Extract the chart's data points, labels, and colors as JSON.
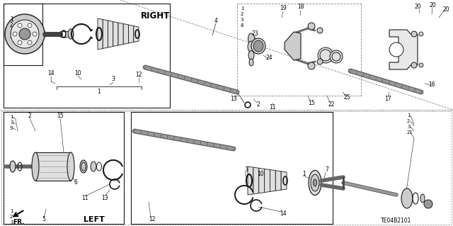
{
  "bg_color": "#ffffff",
  "diagram_id": "TE04B2101",
  "right_label": "RIGHT",
  "left_label": "LEFT",
  "fr_label": "FR.",
  "lc": "#1a1a1a",
  "gray1": "#cccccc",
  "gray2": "#999999",
  "gray3": "#666666",
  "gray4": "#444444",
  "shaft_gray": "#555555"
}
